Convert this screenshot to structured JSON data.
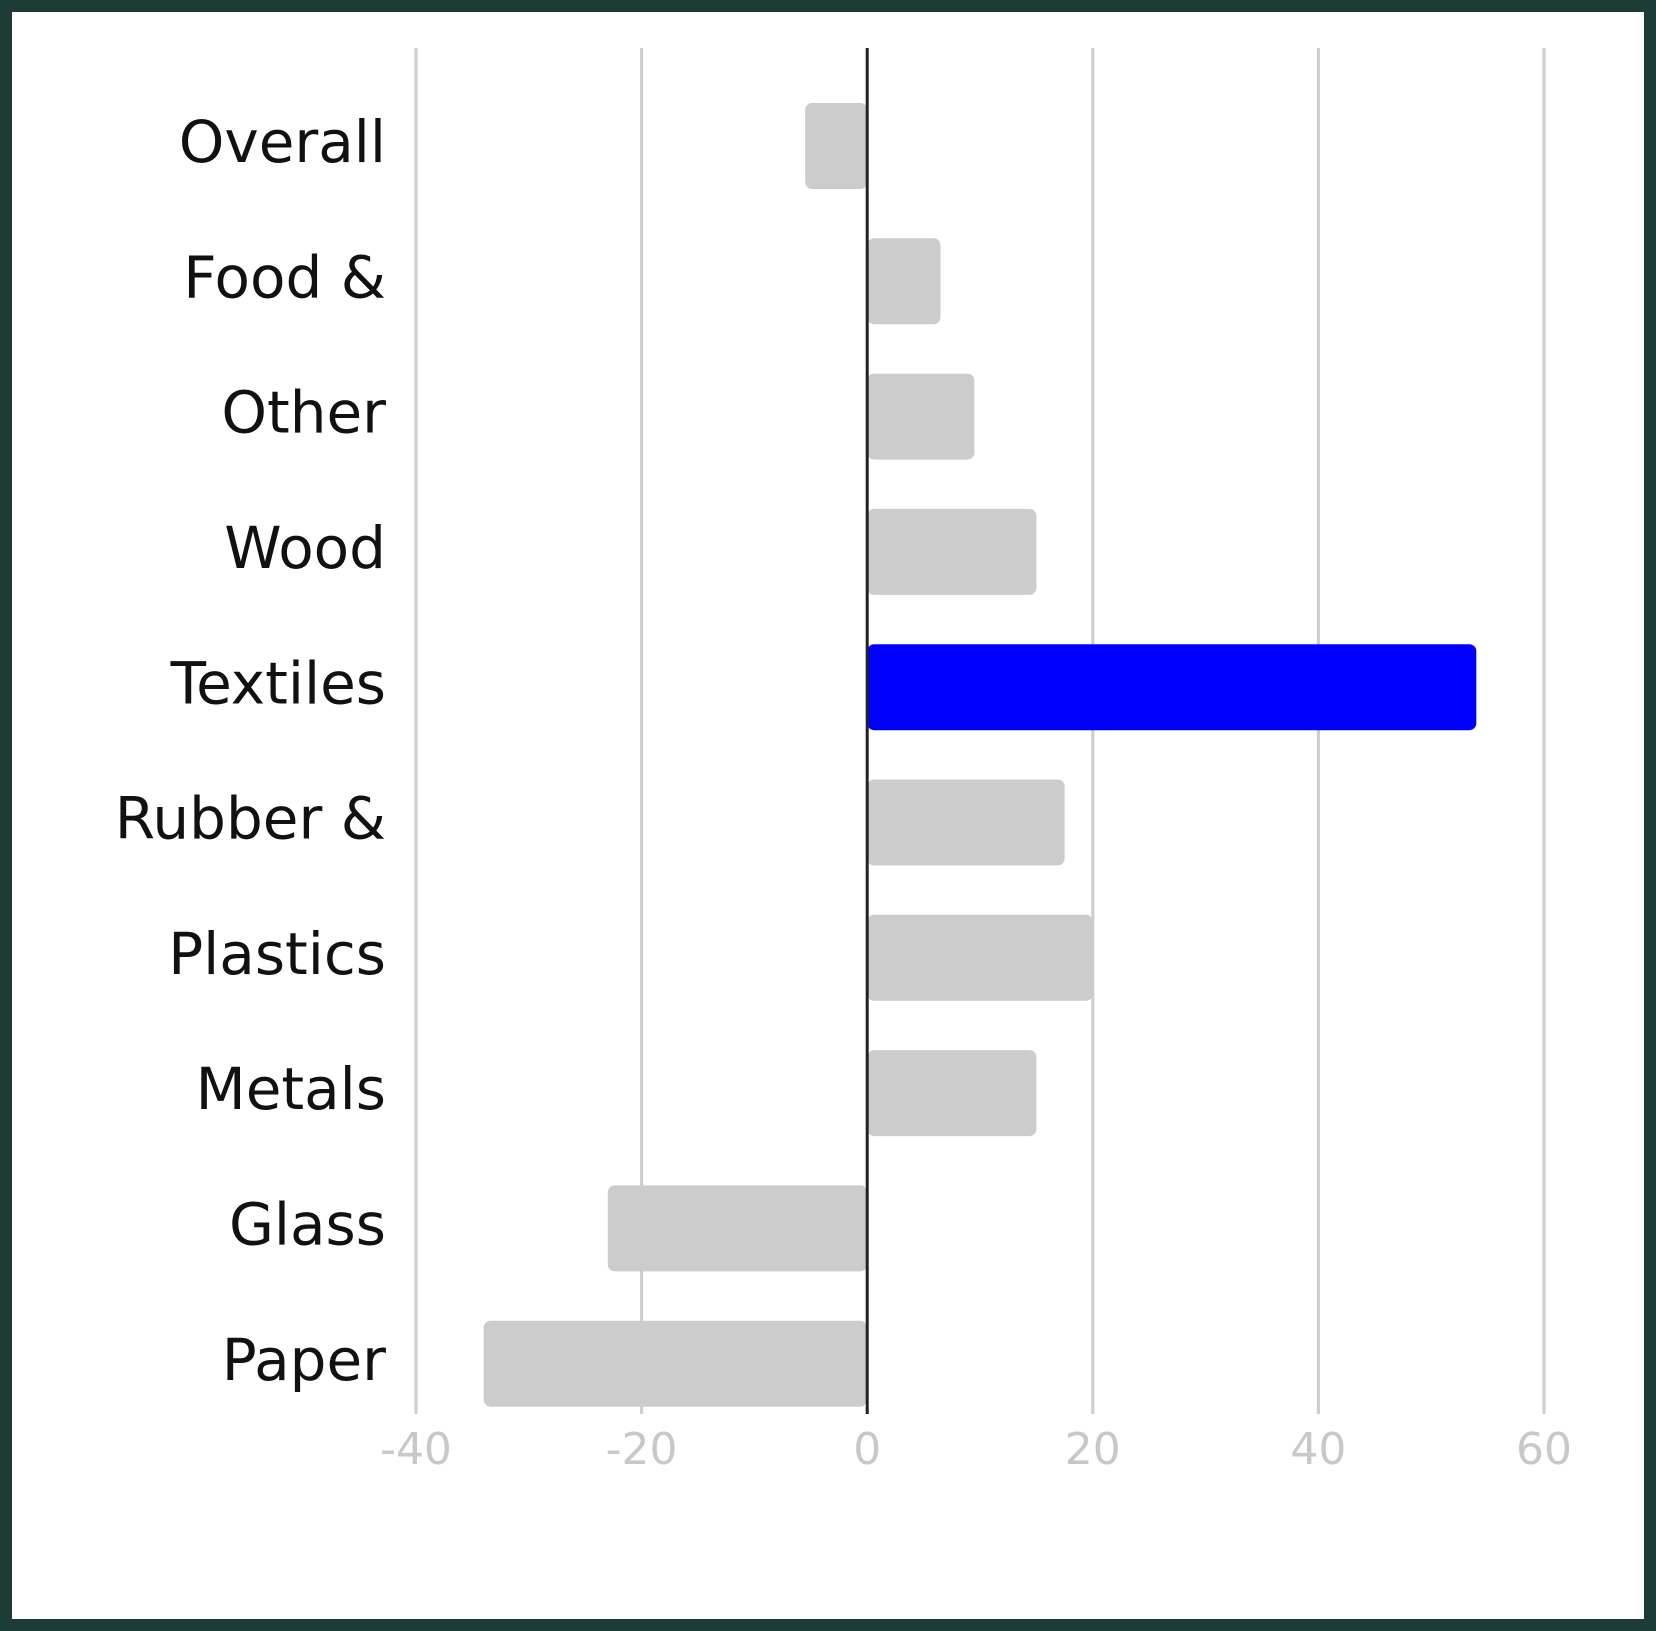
{
  "chart_data": {
    "type": "bar",
    "orientation": "horizontal",
    "categories": [
      "Overall",
      "Food &",
      "Other",
      "Wood",
      "Textiles",
      "Rubber &",
      "Plastics",
      "Metals",
      "Glass",
      "Paper"
    ],
    "values": [
      -5.5,
      6.5,
      9.5,
      15,
      54,
      17.5,
      20,
      15,
      -23,
      -34
    ],
    "highlight": "Textiles",
    "colors": {
      "default": "#cccccc",
      "highlight": "#0000ff",
      "zero_line": "#222222",
      "grid": "#cccccc",
      "tick_text": "#c8c8c8"
    },
    "xlim": [
      -40,
      60
    ],
    "xticks": [
      -40,
      -20,
      0,
      20,
      40,
      60
    ],
    "xtick_labels": [
      "-40",
      "-20",
      "0",
      "20",
      "40",
      "60"
    ],
    "grid": true,
    "title": "",
    "xlabel": "",
    "ylabel": ""
  }
}
